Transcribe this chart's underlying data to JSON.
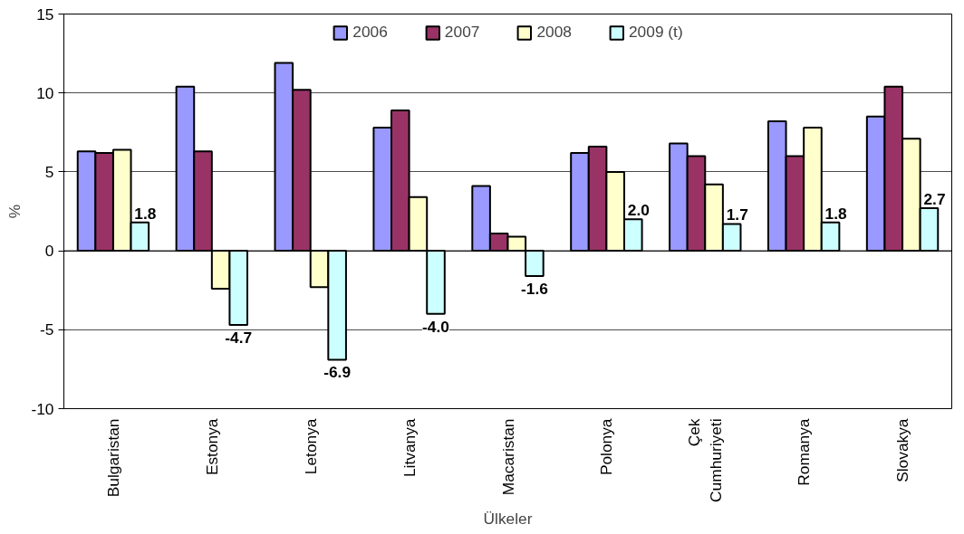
{
  "chart_data": {
    "type": "bar",
    "xlabel": "Ülkeler",
    "ylabel": "%",
    "categories": [
      "Bulgaristan",
      "Estonya",
      "Letonya",
      "Litvanya",
      "Macaristan",
      "Polonya",
      "Çek\nCumhuriyeti",
      "Romanya",
      "Slovakya"
    ],
    "series": [
      {
        "name": "2006",
        "color": "#9999ff",
        "values": [
          6.3,
          10.4,
          11.9,
          7.8,
          4.1,
          6.2,
          6.8,
          8.2,
          8.5
        ]
      },
      {
        "name": "2007",
        "color": "#993366",
        "values": [
          6.2,
          6.3,
          10.2,
          8.9,
          1.1,
          6.6,
          6.0,
          6.0,
          10.4
        ]
      },
      {
        "name": "2008",
        "color": "#ffffcc",
        "values": [
          6.4,
          -2.4,
          -2.3,
          3.4,
          0.9,
          5.0,
          4.2,
          7.8,
          7.1
        ]
      },
      {
        "name": "2009 (t)",
        "color": "#ccffff",
        "values": [
          1.8,
          -4.7,
          -6.9,
          -4.0,
          -1.6,
          2.0,
          1.7,
          1.8,
          2.7
        ],
        "value_labels": [
          "1.8",
          "-4.7",
          "-6.9",
          "-4.0",
          "-1.6",
          "2.0",
          "1.7",
          "1.8",
          "2.7"
        ]
      }
    ],
    "ylim": [
      -10,
      15
    ],
    "yticks": [
      -10,
      -5,
      0,
      5,
      10,
      15
    ],
    "grid": "y",
    "legend": "top"
  }
}
